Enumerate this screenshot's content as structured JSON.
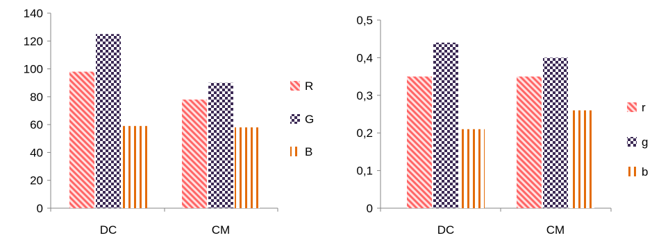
{
  "chart_data": [
    {
      "type": "bar",
      "categories": [
        "DC",
        "CM"
      ],
      "series": [
        {
          "name": "R",
          "values": [
            98,
            78
          ],
          "color": "#ff6666",
          "pattern": "diagonal-stripes"
        },
        {
          "name": "G",
          "values": [
            125,
            90
          ],
          "color": "#3c2a55",
          "pattern": "checkerboard"
        },
        {
          "name": "B",
          "values": [
            59,
            58
          ],
          "color": "#e36c09",
          "pattern": "vertical-bars"
        }
      ],
      "ylim": [
        0,
        140
      ],
      "yticks": [
        "0",
        "20",
        "40",
        "60",
        "80",
        "100",
        "120",
        "140"
      ],
      "legend_position": "right",
      "grid": false
    },
    {
      "type": "bar",
      "categories": [
        "DC",
        "CM"
      ],
      "series": [
        {
          "name": "r",
          "values": [
            0.35,
            0.35
          ],
          "color": "#ff6666",
          "pattern": "diagonal-stripes"
        },
        {
          "name": "g",
          "values": [
            0.44,
            0.4
          ],
          "color": "#3c2a55",
          "pattern": "checkerboard"
        },
        {
          "name": "b",
          "values": [
            0.21,
            0.26
          ],
          "color": "#e36c09",
          "pattern": "vertical-bars"
        }
      ],
      "ylim": [
        0,
        0.5
      ],
      "yticks": [
        "0",
        "0,1",
        "0,2",
        "0,3",
        "0,4",
        "0,5"
      ],
      "legend_position": "right",
      "grid": false
    }
  ]
}
